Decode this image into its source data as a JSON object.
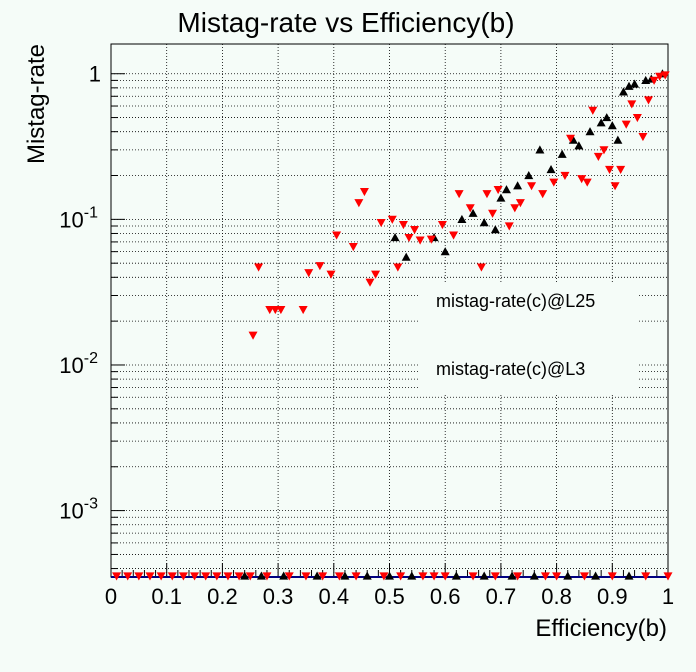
{
  "chart_data": {
    "type": "scatter",
    "title": "Mistag-rate vs Efficiency(b)",
    "xlabel": "Efficiency(b)",
    "ylabel": "Mistag-rate",
    "xlim": [
      0,
      1
    ],
    "ylim": [
      0.00035,
      1.6
    ],
    "yscale": "log",
    "grid": true,
    "x_ticks": [
      "0",
      "0.1",
      "0.2",
      "0.3",
      "0.4",
      "0.5",
      "0.6",
      "0.7",
      "0.8",
      "0.9",
      "1"
    ],
    "y_ticks": [
      {
        "value": 0.001,
        "base": "10",
        "exp": "-3"
      },
      {
        "value": 0.01,
        "base": "10",
        "exp": "-2"
      },
      {
        "value": 0.1,
        "base": "10",
        "exp": "-1"
      },
      {
        "value": 1,
        "base": "1",
        "exp": ""
      }
    ],
    "legend_position": "middle-right",
    "series": [
      {
        "name": "mistag-rate(c)@L25",
        "marker": "triangle-up",
        "color": "#000000",
        "points": [
          [
            0.51,
            0.075
          ],
          [
            0.53,
            0.055
          ],
          [
            0.58,
            0.075
          ],
          [
            0.6,
            0.06
          ],
          [
            0.63,
            0.1
          ],
          [
            0.65,
            0.11
          ],
          [
            0.67,
            0.095
          ],
          [
            0.69,
            0.085
          ],
          [
            0.7,
            0.14
          ],
          [
            0.71,
            0.16
          ],
          [
            0.73,
            0.17
          ],
          [
            0.75,
            0.2
          ],
          [
            0.77,
            0.3
          ],
          [
            0.79,
            0.22
          ],
          [
            0.81,
            0.28
          ],
          [
            0.83,
            0.35
          ],
          [
            0.84,
            0.32
          ],
          [
            0.86,
            0.4
          ],
          [
            0.88,
            0.46
          ],
          [
            0.89,
            0.5
          ],
          [
            0.9,
            0.44
          ],
          [
            0.91,
            0.35
          ],
          [
            0.92,
            0.75
          ],
          [
            0.93,
            0.82
          ],
          [
            0.94,
            0.85
          ],
          [
            0.96,
            0.9
          ],
          [
            0.97,
            0.92
          ],
          [
            0.99,
            1.0
          ]
        ],
        "baseline_x": [
          0.24,
          0.27,
          0.31,
          0.37,
          0.42,
          0.46,
          0.5,
          0.54,
          0.62,
          0.67,
          0.72,
          0.76,
          0.82,
          0.87,
          0.93
        ]
      },
      {
        "name": "mistag-rate(c)@L3",
        "marker": "triangle-down",
        "color": "#ff0000",
        "points": [
          [
            0.255,
            0.016
          ],
          [
            0.265,
            0.047
          ],
          [
            0.285,
            0.024
          ],
          [
            0.295,
            0.024
          ],
          [
            0.305,
            0.024
          ],
          [
            0.345,
            0.024
          ],
          [
            0.355,
            0.043
          ],
          [
            0.375,
            0.048
          ],
          [
            0.395,
            0.042
          ],
          [
            0.405,
            0.078
          ],
          [
            0.435,
            0.065
          ],
          [
            0.445,
            0.13
          ],
          [
            0.455,
            0.155
          ],
          [
            0.465,
            0.037
          ],
          [
            0.475,
            0.042
          ],
          [
            0.485,
            0.095
          ],
          [
            0.505,
            0.1
          ],
          [
            0.515,
            0.047
          ],
          [
            0.525,
            0.092
          ],
          [
            0.535,
            0.075
          ],
          [
            0.545,
            0.085
          ],
          [
            0.555,
            0.072
          ],
          [
            0.575,
            0.073
          ],
          [
            0.595,
            0.092
          ],
          [
            0.615,
            0.078
          ],
          [
            0.625,
            0.15
          ],
          [
            0.645,
            0.12
          ],
          [
            0.665,
            0.047
          ],
          [
            0.675,
            0.15
          ],
          [
            0.685,
            0.11
          ],
          [
            0.695,
            0.16
          ],
          [
            0.715,
            0.09
          ],
          [
            0.725,
            0.12
          ],
          [
            0.735,
            0.13
          ],
          [
            0.755,
            0.17
          ],
          [
            0.775,
            0.15
          ],
          [
            0.795,
            0.18
          ],
          [
            0.815,
            0.2
          ],
          [
            0.825,
            0.36
          ],
          [
            0.845,
            0.19
          ],
          [
            0.855,
            0.18
          ],
          [
            0.865,
            0.56
          ],
          [
            0.875,
            0.27
          ],
          [
            0.885,
            0.3
          ],
          [
            0.895,
            0.22
          ],
          [
            0.905,
            0.17
          ],
          [
            0.915,
            0.22
          ],
          [
            0.925,
            0.45
          ],
          [
            0.935,
            0.62
          ],
          [
            0.945,
            0.5
          ],
          [
            0.955,
            0.37
          ],
          [
            0.965,
            0.66
          ],
          [
            0.975,
            0.9
          ],
          [
            0.985,
            0.96
          ],
          [
            0.995,
            0.98
          ]
        ],
        "baseline_x": [
          0.01,
          0.03,
          0.05,
          0.07,
          0.09,
          0.11,
          0.13,
          0.15,
          0.17,
          0.19,
          0.21,
          0.23,
          0.25,
          0.28,
          0.32,
          0.35,
          0.38,
          0.41,
          0.44,
          0.49,
          0.52,
          0.56,
          0.58,
          0.6,
          0.65,
          0.69,
          0.73,
          0.78,
          0.8,
          0.85,
          0.9,
          0.96,
          1.0
        ]
      }
    ]
  }
}
